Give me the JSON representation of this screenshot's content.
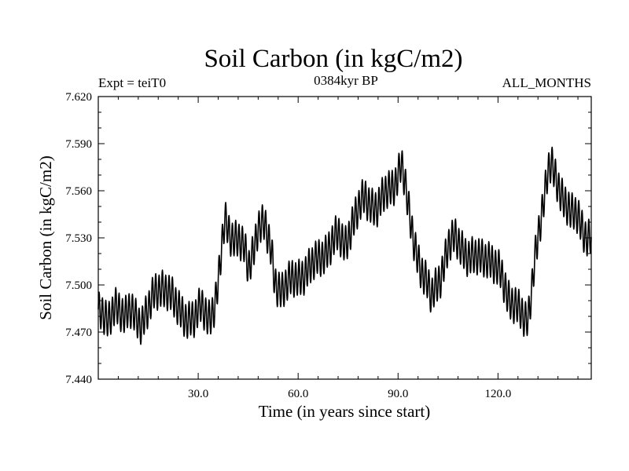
{
  "chart_data": {
    "type": "line",
    "title": "Soil Carbon (in kgC/m2)",
    "subtitle_left": "Expt = teiT0",
    "subtitle_center": "0384kyr BP",
    "subtitle_right": "ALL_MONTHS",
    "xlabel": "Time (in years since start)",
    "ylabel": "Soil Carbon (in kgC/m2)",
    "xlim": [
      0,
      148
    ],
    "ylim": [
      7.44,
      7.62
    ],
    "xticks": [
      30,
      60,
      90,
      120
    ],
    "xtick_labels": [
      "30.0",
      "60.0",
      "90.0",
      "120.0"
    ],
    "yticks": [
      7.44,
      7.47,
      7.5,
      7.53,
      7.56,
      7.59,
      7.62
    ],
    "ytick_labels": [
      "7.440",
      "7.470",
      "7.500",
      "7.530",
      "7.560",
      "7.590",
      "7.620"
    ],
    "seasonal_cycle": {
      "period_years": 1,
      "amplitude": 0.011
    },
    "trend_points": {
      "x": [
        0,
        3,
        5,
        8,
        10,
        13,
        15,
        17,
        19,
        21,
        23,
        25,
        27,
        29,
        31,
        33,
        35,
        36,
        37,
        38,
        40,
        42,
        44,
        45,
        47,
        48,
        50,
        51,
        52,
        53,
        55,
        58,
        61,
        64,
        67,
        70,
        72,
        74,
        76,
        78,
        80,
        82,
        84,
        86,
        88,
        89,
        90,
        91,
        92,
        93,
        95,
        97,
        99,
        100,
        101,
        103,
        105,
        107,
        109,
        111,
        113,
        115,
        117,
        119,
        121,
        123,
        125,
        127,
        128,
        129,
        130,
        131,
        132,
        134,
        135,
        136,
        138,
        140,
        142,
        144,
        146,
        148
      ],
      "y": [
        7.483,
        7.475,
        7.49,
        7.478,
        7.484,
        7.476,
        7.483,
        7.495,
        7.5,
        7.496,
        7.487,
        7.483,
        7.479,
        7.477,
        7.487,
        7.48,
        7.486,
        7.499,
        7.522,
        7.541,
        7.532,
        7.529,
        7.521,
        7.51,
        7.527,
        7.539,
        7.537,
        7.528,
        7.52,
        7.503,
        7.497,
        7.502,
        7.507,
        7.511,
        7.519,
        7.526,
        7.531,
        7.526,
        7.538,
        7.547,
        7.556,
        7.552,
        7.549,
        7.557,
        7.563,
        7.566,
        7.571,
        7.577,
        7.565,
        7.548,
        7.526,
        7.51,
        7.498,
        7.491,
        7.497,
        7.508,
        7.524,
        7.529,
        7.525,
        7.519,
        7.516,
        7.517,
        7.519,
        7.512,
        7.505,
        7.493,
        7.489,
        7.481,
        7.475,
        7.477,
        7.497,
        7.518,
        7.532,
        7.554,
        7.571,
        7.578,
        7.566,
        7.551,
        7.544,
        7.547,
        7.532,
        7.527
      ]
    }
  }
}
